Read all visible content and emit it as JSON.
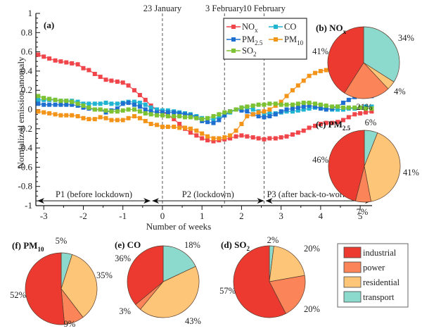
{
  "chart_data": [
    {
      "type": "line",
      "panel": "(a)",
      "xlabel": "Number of weeks",
      "ylabel": "Normalized emission anomaly",
      "xlim": [
        -3.2,
        5.3
      ],
      "ylim": [
        -1,
        1
      ],
      "xticks": [
        "-3",
        "-2",
        "-1",
        "0",
        "1",
        "2",
        "3",
        "4",
        "5"
      ],
      "yticks": [
        "1",
        "0.8",
        "0.6",
        "0.4",
        "0.2",
        "0",
        "-0.2",
        "-0.4",
        "-0.6",
        "-0.8",
        "-1"
      ],
      "event_lines": [
        {
          "label": "23 January",
          "x": 0
        },
        {
          "label": "3 February",
          "x": 1.57
        },
        {
          "label": "10 February",
          "x": 2.57
        }
      ],
      "periods": [
        {
          "label": "P1 (before lockdown)",
          "from": -3.2,
          "to": -0.3
        },
        {
          "label": "P2 (lockdown)",
          "from": -0.3,
          "to": 2.57
        },
        {
          "label": "P3 (after back-to-work day)",
          "from": 2.57,
          "to": 5.3
        }
      ],
      "x": [
        -3.14,
        -3.0,
        -2.86,
        -2.71,
        -2.57,
        -2.43,
        -2.29,
        -2.14,
        -2.0,
        -1.86,
        -1.71,
        -1.57,
        -1.43,
        -1.29,
        -1.14,
        -1.0,
        -0.86,
        -0.71,
        -0.57,
        -0.43,
        -0.29,
        -0.14,
        0.0,
        0.14,
        0.29,
        0.43,
        0.57,
        0.71,
        0.86,
        1.0,
        1.14,
        1.29,
        1.43,
        1.57,
        1.71,
        1.86,
        2.0,
        2.14,
        2.29,
        2.43,
        2.57,
        2.71,
        2.86,
        3.0,
        3.14,
        3.29,
        3.43,
        3.57,
        3.71,
        3.86,
        4.0,
        4.14,
        4.29,
        4.43,
        4.57,
        4.71,
        4.86,
        5.0,
        5.14,
        5.29
      ],
      "series": [
        {
          "name": "NOx",
          "legend_main": "NO",
          "legend_sub": "x",
          "color": "#f0464b",
          "values": [
            0.57,
            0.55,
            0.53,
            0.51,
            0.5,
            0.49,
            0.48,
            0.47,
            0.43,
            0.41,
            0.37,
            0.34,
            0.31,
            0.3,
            0.29,
            0.28,
            0.25,
            0.2,
            0.15,
            0.1,
            0.04,
            0.0,
            -0.02,
            -0.06,
            -0.1,
            -0.15,
            -0.2,
            -0.24,
            -0.27,
            -0.3,
            -0.32,
            -0.33,
            -0.32,
            -0.31,
            -0.3,
            -0.28,
            -0.27,
            -0.28,
            -0.29,
            -0.3,
            -0.31,
            -0.3,
            -0.3,
            -0.29,
            -0.28,
            -0.26,
            -0.24,
            -0.22,
            -0.19,
            -0.17,
            -0.15,
            -0.14,
            -0.14,
            -0.13,
            -0.11,
            -0.08,
            -0.05,
            -0.04,
            -0.03,
            -0.02
          ]
        },
        {
          "name": "CO",
          "legend_main": "CO",
          "legend_sub": "",
          "color": "#20b4d2",
          "values": [
            0.1,
            0.1,
            0.1,
            0.1,
            0.09,
            0.09,
            0.09,
            0.08,
            0.06,
            0.06,
            0.06,
            0.06,
            0.07,
            0.06,
            0.06,
            0.07,
            0.08,
            0.08,
            0.07,
            0.05,
            0.02,
            0.0,
            -0.01,
            -0.01,
            -0.02,
            -0.03,
            -0.04,
            -0.05,
            -0.07,
            -0.09,
            -0.1,
            -0.1,
            -0.08,
            -0.06,
            -0.03,
            0.0,
            0.02,
            0.02,
            0.0,
            -0.02,
            -0.04,
            -0.04,
            -0.04,
            -0.03,
            -0.02,
            -0.02,
            -0.01,
            0.0,
            0.01,
            0.02,
            0.02,
            0.01,
            0.0,
            0.0,
            0.0,
            0.01,
            0.01,
            0.02,
            0.03,
            0.03
          ]
        },
        {
          "name": "PM2.5",
          "legend_main": "PM",
          "legend_sub": "2.5",
          "color": "#1f6fd0",
          "values": [
            0.06,
            0.05,
            0.05,
            0.05,
            0.05,
            0.05,
            0.05,
            0.04,
            0.02,
            0.01,
            0.0,
            0.0,
            -0.03,
            -0.01,
            0.01,
            0.06,
            0.07,
            0.05,
            0.03,
            0.0,
            -0.02,
            -0.03,
            -0.03,
            -0.03,
            -0.03,
            -0.04,
            -0.05,
            -0.06,
            -0.08,
            -0.12,
            -0.13,
            -0.14,
            -0.11,
            -0.06,
            -0.02,
            0.0,
            -0.01,
            -0.02,
            -0.05,
            -0.07,
            -0.08,
            -0.07,
            -0.05,
            -0.02,
            0.0,
            0.01,
            0.02,
            0.03,
            0.04,
            0.03,
            0.01,
            0.0,
            0.01,
            0.03,
            0.07,
            0.1,
            0.13,
            0.16,
            0.17,
            0.14
          ]
        },
        {
          "name": "PM10",
          "legend_main": "PM",
          "legend_sub": "10",
          "color": "#f39419",
          "values": [
            -0.02,
            -0.03,
            -0.04,
            -0.05,
            -0.06,
            -0.06,
            -0.06,
            -0.07,
            -0.09,
            -0.1,
            -0.1,
            -0.08,
            -0.09,
            -0.11,
            -0.11,
            -0.11,
            -0.09,
            -0.07,
            -0.09,
            -0.12,
            -0.15,
            -0.16,
            -0.18,
            -0.18,
            -0.18,
            -0.19,
            -0.19,
            -0.2,
            -0.22,
            -0.25,
            -0.28,
            -0.3,
            -0.3,
            -0.29,
            -0.27,
            -0.22,
            -0.15,
            -0.07,
            -0.05,
            -0.03,
            -0.02,
            0.0,
            0.04,
            0.08,
            0.14,
            0.2,
            0.25,
            0.3,
            0.35,
            0.38,
            0.4,
            0.41,
            0.41,
            0.35,
            0.36,
            0.36,
            0.4,
            0.42,
            0.44,
            0.4
          ]
        },
        {
          "name": "SO2",
          "legend_main": "SO",
          "legend_sub": "2",
          "color": "#7dc232",
          "values": [
            0.14,
            0.12,
            0.11,
            0.1,
            0.09,
            0.09,
            0.08,
            0.06,
            0.04,
            0.02,
            0.0,
            0.0,
            -0.01,
            -0.02,
            -0.02,
            -0.01,
            0.0,
            0.0,
            -0.02,
            -0.04,
            -0.05,
            -0.06,
            -0.06,
            -0.07,
            -0.07,
            -0.07,
            -0.08,
            -0.08,
            -0.09,
            -0.1,
            -0.09,
            -0.07,
            -0.05,
            -0.03,
            -0.02,
            0.0,
            0.02,
            0.03,
            0.04,
            0.05,
            0.05,
            0.06,
            0.06,
            0.05,
            0.05,
            0.05,
            0.06,
            0.07,
            0.07,
            0.06,
            0.05,
            0.04,
            0.03,
            0.03,
            0.02,
            0.02,
            0.02,
            0.02,
            0.01,
            0.01
          ]
        }
      ]
    },
    {
      "type": "pie",
      "panel": "(b)",
      "title_main": "NO",
      "title_sub": "x",
      "slices": [
        {
          "category": "transport",
          "value": 34
        },
        {
          "category": "residential",
          "value": 4
        },
        {
          "category": "power",
          "value": 21
        },
        {
          "category": "industrial",
          "value": 41
        }
      ],
      "labels": [
        "34%",
        "4%",
        "21%",
        "41%"
      ]
    },
    {
      "type": "pie",
      "panel": "(c)",
      "title_main": "PM",
      "title_sub": "2.5",
      "slices": [
        {
          "category": "transport",
          "value": 6
        },
        {
          "category": "residential",
          "value": 41
        },
        {
          "category": "power",
          "value": 7
        },
        {
          "category": "industrial",
          "value": 46
        }
      ],
      "labels": [
        "6%",
        "41%",
        "7%",
        "46%"
      ]
    },
    {
      "type": "pie",
      "panel": "(d)",
      "title_main": "SO",
      "title_sub": "2",
      "slices": [
        {
          "category": "transport",
          "value": 2
        },
        {
          "category": "residential",
          "value": 20
        },
        {
          "category": "power",
          "value": 20
        },
        {
          "category": "industrial",
          "value": 57
        }
      ],
      "labels": [
        "2%",
        "20%",
        "20%",
        "57%"
      ]
    },
    {
      "type": "pie",
      "panel": "(e)",
      "title_main": "CO",
      "title_sub": "",
      "slices": [
        {
          "category": "transport",
          "value": 18
        },
        {
          "category": "residential",
          "value": 43
        },
        {
          "category": "power",
          "value": 3
        },
        {
          "category": "industrial",
          "value": 36
        }
      ],
      "labels": [
        "18%",
        "43%",
        "3%",
        "36%"
      ]
    },
    {
      "type": "pie",
      "panel": "(f)",
      "title_main": "PM",
      "title_sub": "10",
      "slices": [
        {
          "category": "transport",
          "value": 5
        },
        {
          "category": "residential",
          "value": 35
        },
        {
          "category": "power",
          "value": 9
        },
        {
          "category": "industrial",
          "value": 52
        }
      ],
      "labels": [
        "5%",
        "35%",
        "9%",
        "52%"
      ]
    }
  ],
  "sector_legend": [
    {
      "label": "industrial",
      "color": "#ec3a31"
    },
    {
      "label": "power",
      "color": "#fc8459"
    },
    {
      "label": "residential",
      "color": "#fcc577"
    },
    {
      "label": "transport",
      "color": "#8cd9cd"
    }
  ]
}
